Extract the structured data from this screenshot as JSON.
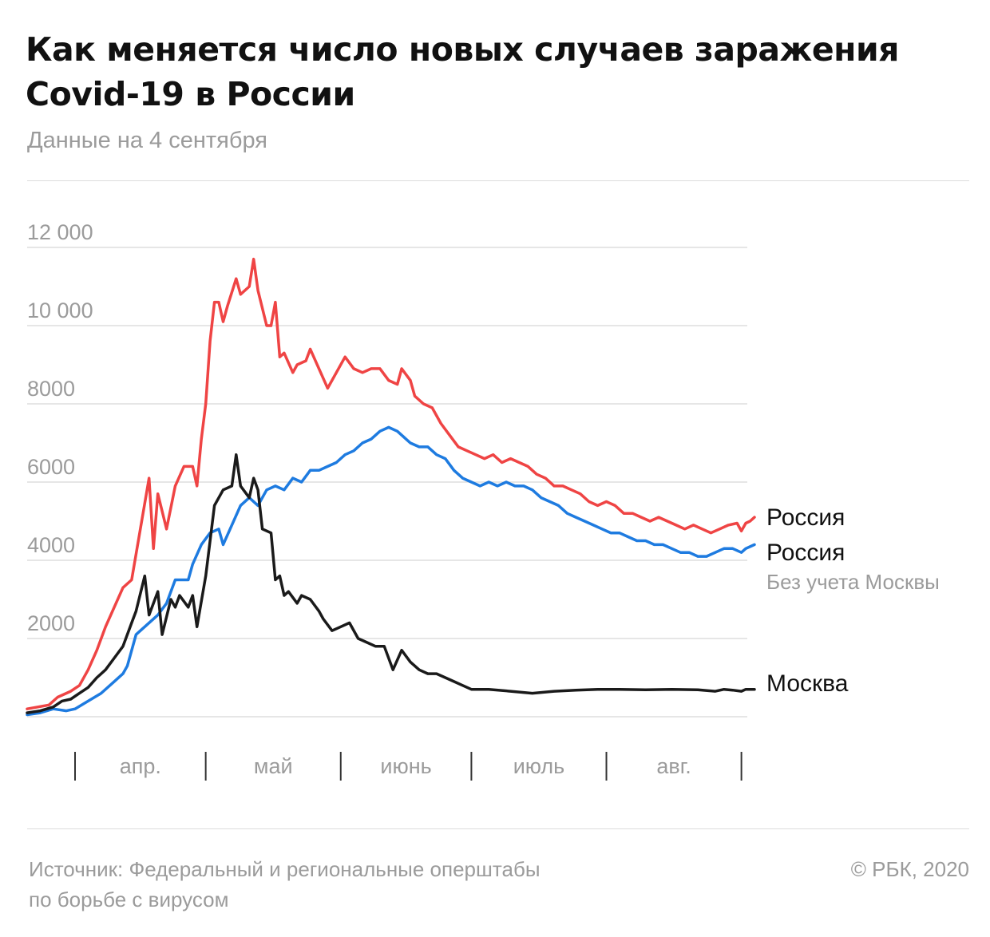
{
  "header": {
    "title_line1": "Как меняется число новых случаев заражения",
    "title_line2": "Covid-19 в России",
    "subtitle": "Данные на 4 сентября"
  },
  "footer": {
    "source_line1": "Источник: Федеральный и региональные оперштабы",
    "source_line2": "по борьбе с вирусом",
    "copyright": "© РБК, 2020"
  },
  "chart_data": {
    "type": "line",
    "ylim": [
      0,
      12000
    ],
    "yticks": [
      2000,
      4000,
      6000,
      8000,
      10000,
      12000
    ],
    "ytick_labels": [
      "2000",
      "4000",
      "6000",
      "8000",
      "10 000",
      "12 000"
    ],
    "grid": true,
    "x_categories": [
      "апр.",
      "май",
      "июнь",
      "июль",
      "авг."
    ],
    "x_range": [
      "2020-03-21",
      "2020-09-04"
    ],
    "month_boundaries": [
      "2020-04-01",
      "2020-05-01",
      "2020-06-01",
      "2020-07-01",
      "2020-08-01",
      "2020-09-01"
    ],
    "series": [
      {
        "name": "Россия",
        "sublabel": "",
        "color": "#ef4444",
        "points": [
          [
            "2020-03-21",
            200
          ],
          [
            "2020-03-26",
            300
          ],
          [
            "2020-03-28",
            500
          ],
          [
            "2020-03-31",
            650
          ],
          [
            "2020-04-02",
            800
          ],
          [
            "2020-04-04",
            1200
          ],
          [
            "2020-04-06",
            1700
          ],
          [
            "2020-04-08",
            2300
          ],
          [
            "2020-04-10",
            2800
          ],
          [
            "2020-04-12",
            3300
          ],
          [
            "2020-04-14",
            3500
          ],
          [
            "2020-04-16",
            4800
          ],
          [
            "2020-04-18",
            6100
          ],
          [
            "2020-04-19",
            4300
          ],
          [
            "2020-04-20",
            5700
          ],
          [
            "2020-04-22",
            4800
          ],
          [
            "2020-04-24",
            5900
          ],
          [
            "2020-04-26",
            6400
          ],
          [
            "2020-04-28",
            6400
          ],
          [
            "2020-04-29",
            5900
          ],
          [
            "2020-04-30",
            7100
          ],
          [
            "2020-05-01",
            8000
          ],
          [
            "2020-05-02",
            9600
          ],
          [
            "2020-05-03",
            10600
          ],
          [
            "2020-05-04",
            10600
          ],
          [
            "2020-05-05",
            10100
          ],
          [
            "2020-05-06",
            10500
          ],
          [
            "2020-05-08",
            11200
          ],
          [
            "2020-05-09",
            10800
          ],
          [
            "2020-05-11",
            11000
          ],
          [
            "2020-05-12",
            11700
          ],
          [
            "2020-05-13",
            10900
          ],
          [
            "2020-05-15",
            10000
          ],
          [
            "2020-05-16",
            10000
          ],
          [
            "2020-05-17",
            10600
          ],
          [
            "2020-05-18",
            9200
          ],
          [
            "2020-05-19",
            9300
          ],
          [
            "2020-05-21",
            8800
          ],
          [
            "2020-05-22",
            9000
          ],
          [
            "2020-05-24",
            9100
          ],
          [
            "2020-05-25",
            9400
          ],
          [
            "2020-05-27",
            8900
          ],
          [
            "2020-05-29",
            8400
          ],
          [
            "2020-05-31",
            8800
          ],
          [
            "2020-06-02",
            9200
          ],
          [
            "2020-06-04",
            8900
          ],
          [
            "2020-06-06",
            8800
          ],
          [
            "2020-06-08",
            8900
          ],
          [
            "2020-06-10",
            8900
          ],
          [
            "2020-06-12",
            8600
          ],
          [
            "2020-06-14",
            8500
          ],
          [
            "2020-06-15",
            8900
          ],
          [
            "2020-06-17",
            8600
          ],
          [
            "2020-06-18",
            8200
          ],
          [
            "2020-06-20",
            8000
          ],
          [
            "2020-06-22",
            7900
          ],
          [
            "2020-06-24",
            7500
          ],
          [
            "2020-06-26",
            7200
          ],
          [
            "2020-06-28",
            6900
          ],
          [
            "2020-06-30",
            6800
          ],
          [
            "2020-07-02",
            6700
          ],
          [
            "2020-07-04",
            6600
          ],
          [
            "2020-07-06",
            6700
          ],
          [
            "2020-07-08",
            6500
          ],
          [
            "2020-07-10",
            6600
          ],
          [
            "2020-07-12",
            6500
          ],
          [
            "2020-07-14",
            6400
          ],
          [
            "2020-07-16",
            6200
          ],
          [
            "2020-07-18",
            6100
          ],
          [
            "2020-07-20",
            5900
          ],
          [
            "2020-07-22",
            5900
          ],
          [
            "2020-07-24",
            5800
          ],
          [
            "2020-07-26",
            5700
          ],
          [
            "2020-07-28",
            5500
          ],
          [
            "2020-07-30",
            5400
          ],
          [
            "2020-08-01",
            5500
          ],
          [
            "2020-08-03",
            5400
          ],
          [
            "2020-08-05",
            5200
          ],
          [
            "2020-08-07",
            5200
          ],
          [
            "2020-08-09",
            5100
          ],
          [
            "2020-08-11",
            5000
          ],
          [
            "2020-08-13",
            5100
          ],
          [
            "2020-08-15",
            5000
          ],
          [
            "2020-08-17",
            4900
          ],
          [
            "2020-08-19",
            4800
          ],
          [
            "2020-08-21",
            4900
          ],
          [
            "2020-08-23",
            4800
          ],
          [
            "2020-08-25",
            4700
          ],
          [
            "2020-08-27",
            4800
          ],
          [
            "2020-08-29",
            4900
          ],
          [
            "2020-08-31",
            4950
          ],
          [
            "2020-09-01",
            4750
          ],
          [
            "2020-09-02",
            4950
          ],
          [
            "2020-09-03",
            5000
          ],
          [
            "2020-09-04",
            5100
          ]
        ]
      },
      {
        "name": "Россия",
        "sublabel": "Без учета Москвы",
        "color": "#1e7be0",
        "points": [
          [
            "2020-03-21",
            50
          ],
          [
            "2020-03-24",
            100
          ],
          [
            "2020-03-27",
            200
          ],
          [
            "2020-03-30",
            150
          ],
          [
            "2020-04-01",
            200
          ],
          [
            "2020-04-04",
            400
          ],
          [
            "2020-04-07",
            600
          ],
          [
            "2020-04-10",
            900
          ],
          [
            "2020-04-12",
            1100
          ],
          [
            "2020-04-13",
            1300
          ],
          [
            "2020-04-15",
            2100
          ],
          [
            "2020-04-18",
            2400
          ],
          [
            "2020-04-20",
            2600
          ],
          [
            "2020-04-22",
            2900
          ],
          [
            "2020-04-24",
            3500
          ],
          [
            "2020-04-27",
            3500
          ],
          [
            "2020-04-28",
            3900
          ],
          [
            "2020-04-30",
            4400
          ],
          [
            "2020-05-02",
            4700
          ],
          [
            "2020-05-04",
            4800
          ],
          [
            "2020-05-05",
            4400
          ],
          [
            "2020-05-07",
            4900
          ],
          [
            "2020-05-09",
            5400
          ],
          [
            "2020-05-11",
            5600
          ],
          [
            "2020-05-13",
            5400
          ],
          [
            "2020-05-15",
            5800
          ],
          [
            "2020-05-17",
            5900
          ],
          [
            "2020-05-19",
            5800
          ],
          [
            "2020-05-21",
            6100
          ],
          [
            "2020-05-23",
            6000
          ],
          [
            "2020-05-25",
            6300
          ],
          [
            "2020-05-27",
            6300
          ],
          [
            "2020-05-29",
            6400
          ],
          [
            "2020-05-31",
            6500
          ],
          [
            "2020-06-02",
            6700
          ],
          [
            "2020-06-04",
            6800
          ],
          [
            "2020-06-06",
            7000
          ],
          [
            "2020-06-08",
            7100
          ],
          [
            "2020-06-10",
            7300
          ],
          [
            "2020-06-12",
            7400
          ],
          [
            "2020-06-14",
            7300
          ],
          [
            "2020-06-15",
            7200
          ],
          [
            "2020-06-17",
            7000
          ],
          [
            "2020-06-19",
            6900
          ],
          [
            "2020-06-21",
            6900
          ],
          [
            "2020-06-23",
            6700
          ],
          [
            "2020-06-25",
            6600
          ],
          [
            "2020-06-27",
            6300
          ],
          [
            "2020-06-29",
            6100
          ],
          [
            "2020-07-01",
            6000
          ],
          [
            "2020-07-03",
            5900
          ],
          [
            "2020-07-05",
            6000
          ],
          [
            "2020-07-07",
            5900
          ],
          [
            "2020-07-09",
            6000
          ],
          [
            "2020-07-11",
            5900
          ],
          [
            "2020-07-13",
            5900
          ],
          [
            "2020-07-15",
            5800
          ],
          [
            "2020-07-17",
            5600
          ],
          [
            "2020-07-19",
            5500
          ],
          [
            "2020-07-21",
            5400
          ],
          [
            "2020-07-23",
            5200
          ],
          [
            "2020-07-25",
            5100
          ],
          [
            "2020-07-27",
            5000
          ],
          [
            "2020-07-29",
            4900
          ],
          [
            "2020-07-31",
            4800
          ],
          [
            "2020-08-02",
            4700
          ],
          [
            "2020-08-04",
            4700
          ],
          [
            "2020-08-06",
            4600
          ],
          [
            "2020-08-08",
            4500
          ],
          [
            "2020-08-10",
            4500
          ],
          [
            "2020-08-12",
            4400
          ],
          [
            "2020-08-14",
            4400
          ],
          [
            "2020-08-16",
            4300
          ],
          [
            "2020-08-18",
            4200
          ],
          [
            "2020-08-20",
            4200
          ],
          [
            "2020-08-22",
            4100
          ],
          [
            "2020-08-24",
            4100
          ],
          [
            "2020-08-26",
            4200
          ],
          [
            "2020-08-28",
            4300
          ],
          [
            "2020-08-30",
            4300
          ],
          [
            "2020-09-01",
            4200
          ],
          [
            "2020-09-02",
            4300
          ],
          [
            "2020-09-03",
            4350
          ],
          [
            "2020-09-04",
            4400
          ]
        ]
      },
      {
        "name": "Москва",
        "sublabel": "",
        "color": "#1a1a1a",
        "points": [
          [
            "2020-03-21",
            100
          ],
          [
            "2020-03-24",
            150
          ],
          [
            "2020-03-27",
            250
          ],
          [
            "2020-03-29",
            400
          ],
          [
            "2020-03-31",
            450
          ],
          [
            "2020-04-02",
            600
          ],
          [
            "2020-04-04",
            750
          ],
          [
            "2020-04-06",
            1000
          ],
          [
            "2020-04-08",
            1200
          ],
          [
            "2020-04-10",
            1500
          ],
          [
            "2020-04-12",
            1800
          ],
          [
            "2020-04-14",
            2400
          ],
          [
            "2020-04-15",
            2700
          ],
          [
            "2020-04-17",
            3600
          ],
          [
            "2020-04-18",
            2600
          ],
          [
            "2020-04-20",
            3200
          ],
          [
            "2020-04-21",
            2100
          ],
          [
            "2020-04-23",
            3000
          ],
          [
            "2020-04-24",
            2800
          ],
          [
            "2020-04-25",
            3100
          ],
          [
            "2020-04-27",
            2800
          ],
          [
            "2020-04-28",
            3100
          ],
          [
            "2020-04-29",
            2300
          ],
          [
            "2020-05-01",
            3600
          ],
          [
            "2020-05-03",
            5400
          ],
          [
            "2020-05-05",
            5800
          ],
          [
            "2020-05-07",
            5900
          ],
          [
            "2020-05-08",
            6700
          ],
          [
            "2020-05-09",
            5900
          ],
          [
            "2020-05-11",
            5600
          ],
          [
            "2020-05-12",
            6100
          ],
          [
            "2020-05-13",
            5800
          ],
          [
            "2020-05-14",
            4800
          ],
          [
            "2020-05-16",
            4700
          ],
          [
            "2020-05-17",
            3500
          ],
          [
            "2020-05-18",
            3600
          ],
          [
            "2020-05-19",
            3100
          ],
          [
            "2020-05-20",
            3200
          ],
          [
            "2020-05-22",
            2900
          ],
          [
            "2020-05-23",
            3100
          ],
          [
            "2020-05-25",
            3000
          ],
          [
            "2020-05-27",
            2700
          ],
          [
            "2020-05-28",
            2500
          ],
          [
            "2020-05-30",
            2200
          ],
          [
            "2020-06-01",
            2300
          ],
          [
            "2020-06-03",
            2400
          ],
          [
            "2020-06-05",
            2000
          ],
          [
            "2020-06-07",
            1900
          ],
          [
            "2020-06-09",
            1800
          ],
          [
            "2020-06-11",
            1800
          ],
          [
            "2020-06-13",
            1200
          ],
          [
            "2020-06-15",
            1700
          ],
          [
            "2020-06-17",
            1400
          ],
          [
            "2020-06-19",
            1200
          ],
          [
            "2020-06-21",
            1100
          ],
          [
            "2020-06-23",
            1100
          ],
          [
            "2020-06-25",
            1000
          ],
          [
            "2020-06-27",
            900
          ],
          [
            "2020-06-29",
            800
          ],
          [
            "2020-07-01",
            700
          ],
          [
            "2020-07-05",
            700
          ],
          [
            "2020-07-10",
            650
          ],
          [
            "2020-07-15",
            600
          ],
          [
            "2020-07-20",
            650
          ],
          [
            "2020-07-25",
            680
          ],
          [
            "2020-07-30",
            700
          ],
          [
            "2020-08-04",
            700
          ],
          [
            "2020-08-10",
            690
          ],
          [
            "2020-08-16",
            700
          ],
          [
            "2020-08-22",
            690
          ],
          [
            "2020-08-26",
            650
          ],
          [
            "2020-08-28",
            700
          ],
          [
            "2020-08-30",
            680
          ],
          [
            "2020-09-01",
            650
          ],
          [
            "2020-09-02",
            700
          ],
          [
            "2020-09-04",
            700
          ]
        ]
      }
    ]
  }
}
